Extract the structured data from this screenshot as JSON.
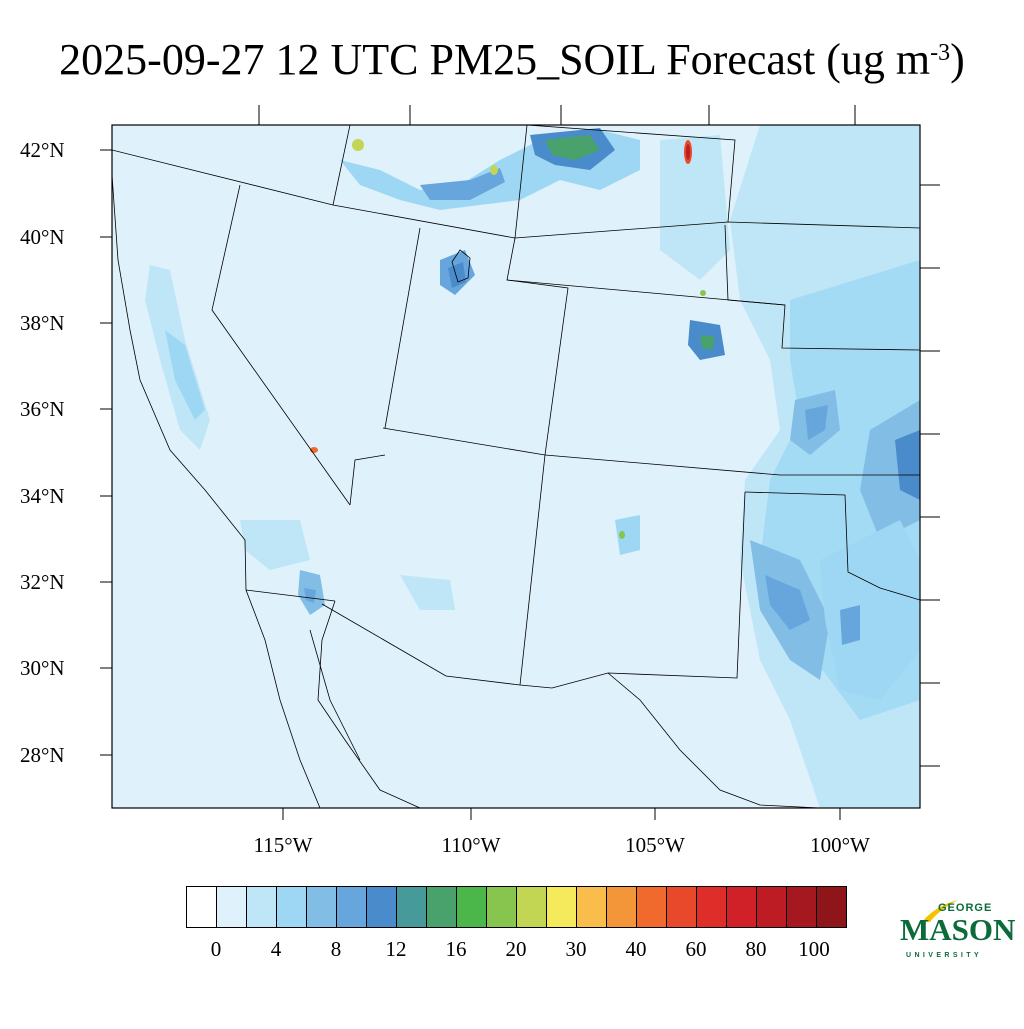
{
  "title": {
    "main": "2025-09-27 12 UTC PM25_SOIL Forecast (ug m",
    "sup": "-3",
    "close": ")"
  },
  "map": {
    "lat_labels": [
      "42°N",
      "40°N",
      "38°N",
      "36°N",
      "34°N",
      "32°N",
      "30°N",
      "28°N"
    ],
    "lon_labels": [
      "115°W",
      "110°W",
      "105°W",
      "100°W"
    ],
    "background_color": "#dff1fb"
  },
  "colorbar": {
    "colors": [
      "#ffffff",
      "#dff1fb",
      "#bfe6f7",
      "#9ed7f3",
      "#82bde5",
      "#66a6dd",
      "#4a8bcb",
      "#469a9a",
      "#49a26c",
      "#4bb649",
      "#88c54e",
      "#c2d654",
      "#f5e95c",
      "#f8bd4a",
      "#f3963a",
      "#ef6a2c",
      "#e8492a",
      "#df2e2a",
      "#d02028",
      "#bd1c25",
      "#a6181f",
      "#8e1519"
    ],
    "labels": [
      "0",
      "4",
      "8",
      "12",
      "16",
      "20",
      "30",
      "40",
      "60",
      "80",
      "100"
    ]
  },
  "logo": {
    "line1": "GEORGE",
    "line2": "MASON",
    "line3": "UNIVERSITY"
  }
}
